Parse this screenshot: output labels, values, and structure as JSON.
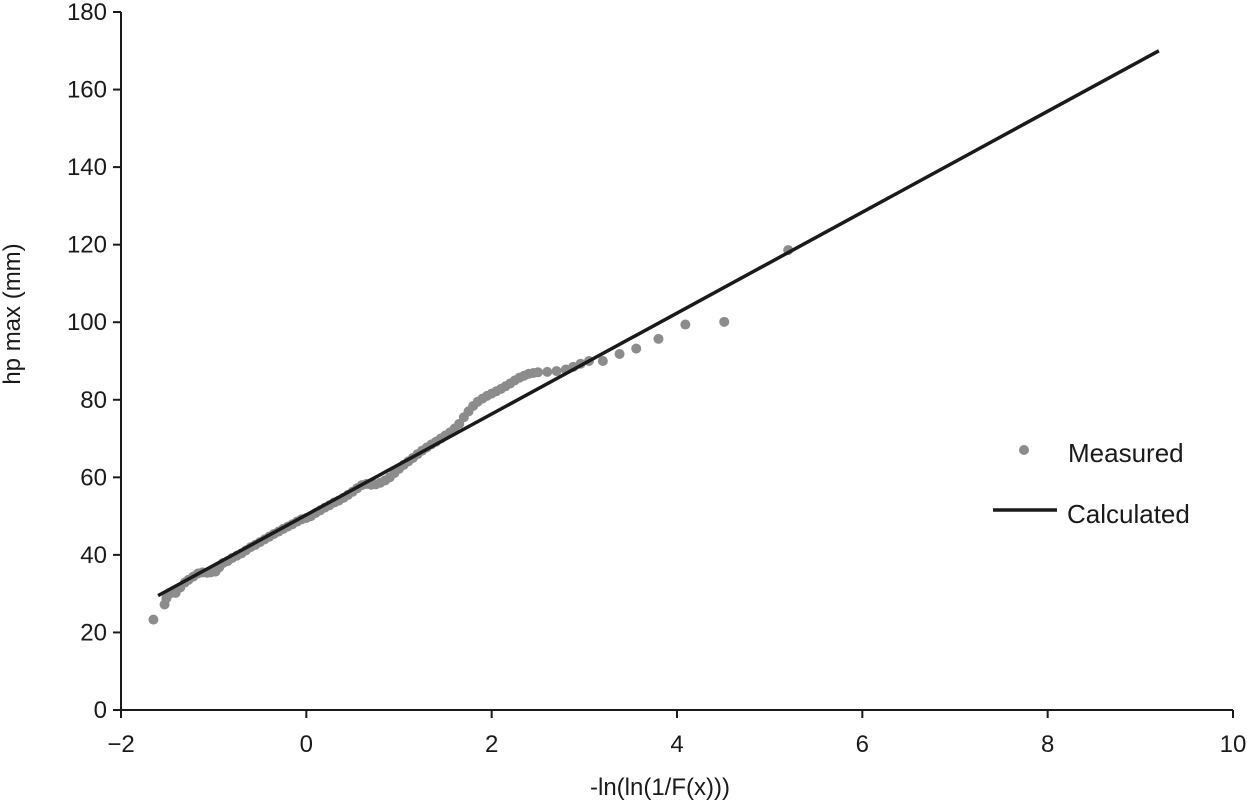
{
  "chart_data": {
    "type": "scatter",
    "xlabel": "-ln(ln(1/F(x)))",
    "ylabel": "hp max (mm)",
    "xlim": [
      -2,
      10
    ],
    "ylim": [
      0,
      180
    ],
    "xticks": [
      -2,
      0,
      2,
      4,
      6,
      8,
      10
    ],
    "xtick_labels": [
      "−2",
      "0",
      "2",
      "4",
      "6",
      "8",
      "10"
    ],
    "yticks": [
      0,
      20,
      40,
      60,
      80,
      100,
      120,
      140,
      160,
      180
    ],
    "ytick_labels": [
      "0",
      "20",
      "40",
      "60",
      "80",
      "100",
      "120",
      "140",
      "160",
      "180"
    ],
    "grid": false,
    "legend_position": "right",
    "series": [
      {
        "name": "Measured",
        "kind": "scatter",
        "color": "#8c8c8c",
        "points": [
          [
            -1.65,
            23.3
          ],
          [
            -1.53,
            27.2
          ],
          [
            -1.51,
            28.8
          ],
          [
            -1.47,
            30.1
          ],
          [
            -1.41,
            30.2
          ],
          [
            -1.36,
            31.6
          ],
          [
            -1.31,
            32.9
          ],
          [
            -1.27,
            33.6
          ],
          [
            -1.22,
            34.4
          ],
          [
            -1.17,
            35.2
          ],
          [
            -1.12,
            35.5
          ],
          [
            -1.07,
            35.4
          ],
          [
            -1.03,
            35.5
          ],
          [
            -0.98,
            35.7
          ],
          [
            -0.94,
            36.8
          ],
          [
            -0.9,
            37.9
          ],
          [
            -0.85,
            38.4
          ],
          [
            -0.8,
            39.2
          ],
          [
            -0.75,
            39.8
          ],
          [
            -0.7,
            40.4
          ],
          [
            -0.65,
            41.2
          ],
          [
            -0.6,
            42.0
          ],
          [
            -0.55,
            42.6
          ],
          [
            -0.5,
            43.3
          ],
          [
            -0.45,
            44.0
          ],
          [
            -0.4,
            44.7
          ],
          [
            -0.35,
            45.4
          ],
          [
            -0.3,
            46.0
          ],
          [
            -0.25,
            46.7
          ],
          [
            -0.2,
            47.3
          ],
          [
            -0.15,
            47.9
          ],
          [
            -0.1,
            48.6
          ],
          [
            -0.05,
            49.2
          ],
          [
            0.0,
            49.5
          ],
          [
            0.05,
            50.0
          ],
          [
            0.1,
            50.8
          ],
          [
            0.15,
            51.5
          ],
          [
            0.2,
            52.2
          ],
          [
            0.25,
            52.8
          ],
          [
            0.3,
            53.5
          ],
          [
            0.35,
            54.0
          ],
          [
            0.4,
            54.7
          ],
          [
            0.45,
            55.5
          ],
          [
            0.5,
            56.3
          ],
          [
            0.55,
            57.2
          ],
          [
            0.6,
            58.0
          ],
          [
            0.65,
            58.3
          ],
          [
            0.7,
            58.1
          ],
          [
            0.75,
            58.2
          ],
          [
            0.8,
            58.6
          ],
          [
            0.85,
            59.2
          ],
          [
            0.9,
            60.0
          ],
          [
            0.95,
            61.1
          ],
          [
            1.0,
            62.2
          ],
          [
            1.05,
            63.2
          ],
          [
            1.1,
            64.1
          ],
          [
            1.15,
            65.0
          ],
          [
            1.2,
            66.0
          ],
          [
            1.25,
            66.9
          ],
          [
            1.3,
            67.7
          ],
          [
            1.35,
            68.5
          ],
          [
            1.4,
            69.2
          ],
          [
            1.45,
            70.0
          ],
          [
            1.5,
            70.8
          ],
          [
            1.55,
            71.6
          ],
          [
            1.6,
            72.6
          ],
          [
            1.65,
            73.8
          ],
          [
            1.7,
            75.5
          ],
          [
            1.75,
            77.0
          ],
          [
            1.8,
            78.4
          ],
          [
            1.85,
            79.5
          ],
          [
            1.9,
            80.3
          ],
          [
            1.95,
            81.0
          ],
          [
            2.0,
            81.6
          ],
          [
            2.05,
            82.2
          ],
          [
            2.1,
            82.8
          ],
          [
            2.15,
            83.5
          ],
          [
            2.2,
            84.2
          ],
          [
            2.25,
            85.0
          ],
          [
            2.3,
            85.7
          ],
          [
            2.35,
            86.2
          ],
          [
            2.4,
            86.7
          ],
          [
            2.45,
            86.9
          ],
          [
            2.5,
            87.1
          ],
          [
            2.6,
            87.2
          ],
          [
            2.7,
            87.4
          ],
          [
            2.8,
            87.8
          ],
          [
            2.88,
            88.5
          ],
          [
            2.96,
            89.3
          ],
          [
            3.05,
            90.0
          ],
          [
            3.2,
            90.0
          ],
          [
            3.38,
            91.8
          ],
          [
            3.56,
            93.2
          ],
          [
            3.8,
            95.7
          ],
          [
            4.09,
            99.4
          ],
          [
            4.51,
            100.1
          ],
          [
            5.2,
            118.6
          ]
        ]
      },
      {
        "name": "Calculated",
        "kind": "line",
        "color": "#1a1a1a",
        "points": [
          [
            -1.6,
            29.5
          ],
          [
            9.2,
            170.0
          ]
        ]
      }
    ]
  }
}
